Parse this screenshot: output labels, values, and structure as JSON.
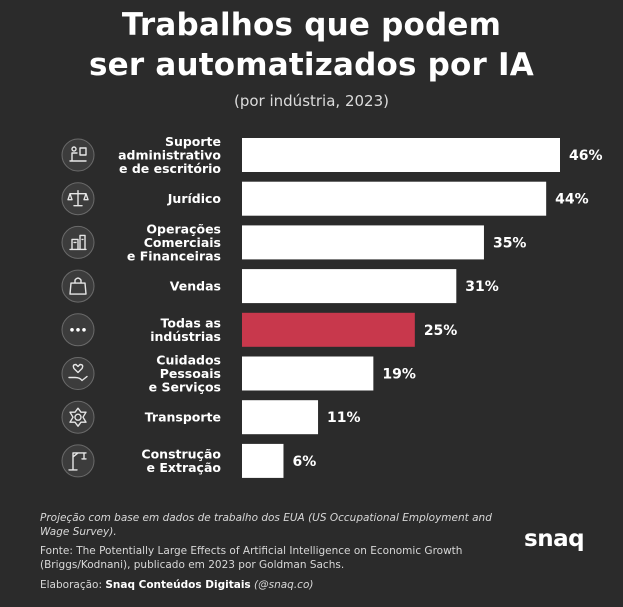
{
  "title_line1": "Trabalhos que podem",
  "title_line2": "ser automatizados por IA",
  "subtitle": "(por indústria, 2023)",
  "colors": {
    "bar": "#ffffff",
    "highlight": "#c8384c",
    "background": "#2b2b2b"
  },
  "chart_data": {
    "type": "bar",
    "orientation": "horizontal",
    "unit": "%",
    "xlim": [
      0,
      46
    ],
    "categories": [
      {
        "label_lines": [
          "Suporte",
          "administrativo",
          "e de escritório"
        ],
        "icon": "office-desk-icon"
      },
      {
        "label_lines": [
          "Jurídico"
        ],
        "icon": "scales-icon"
      },
      {
        "label_lines": [
          "Operações",
          "Comerciais",
          "e Financeiras"
        ],
        "icon": "finance-icon"
      },
      {
        "label_lines": [
          "Vendas"
        ],
        "icon": "shopping-bag-icon"
      },
      {
        "label_lines": [
          "Todas as",
          "indústrias"
        ],
        "icon": "dots-icon"
      },
      {
        "label_lines": [
          "Cuidados",
          "Pessoais",
          "e Serviços"
        ],
        "icon": "care-hand-icon"
      },
      {
        "label_lines": [
          "Transporte"
        ],
        "icon": "transport-gear-icon"
      },
      {
        "label_lines": [
          "Construção",
          "e Extração"
        ],
        "icon": "crane-icon"
      }
    ],
    "values": [
      46,
      44,
      35,
      31,
      25,
      19,
      11,
      6
    ],
    "value_labels": [
      "46%",
      "44%",
      "35%",
      "31%",
      "25%",
      "19%",
      "11%",
      "6%"
    ],
    "highlight_index": 4
  },
  "footnote": "Projeção com base em dados de trabalho dos EUA (US Occupational Employment and Wage Survey).",
  "source": "Fonte: The Potentially Large Effects of Artificial Intelligence on Economic Growth (Briggs/Kodnani), publicado em 2023 por Goldman Sachs.",
  "credit_prefix": "Elaboração:",
  "credit_name": "Snaq Conteúdos Digitais",
  "credit_handle": "(@snaq.co)",
  "logo": "snaq"
}
